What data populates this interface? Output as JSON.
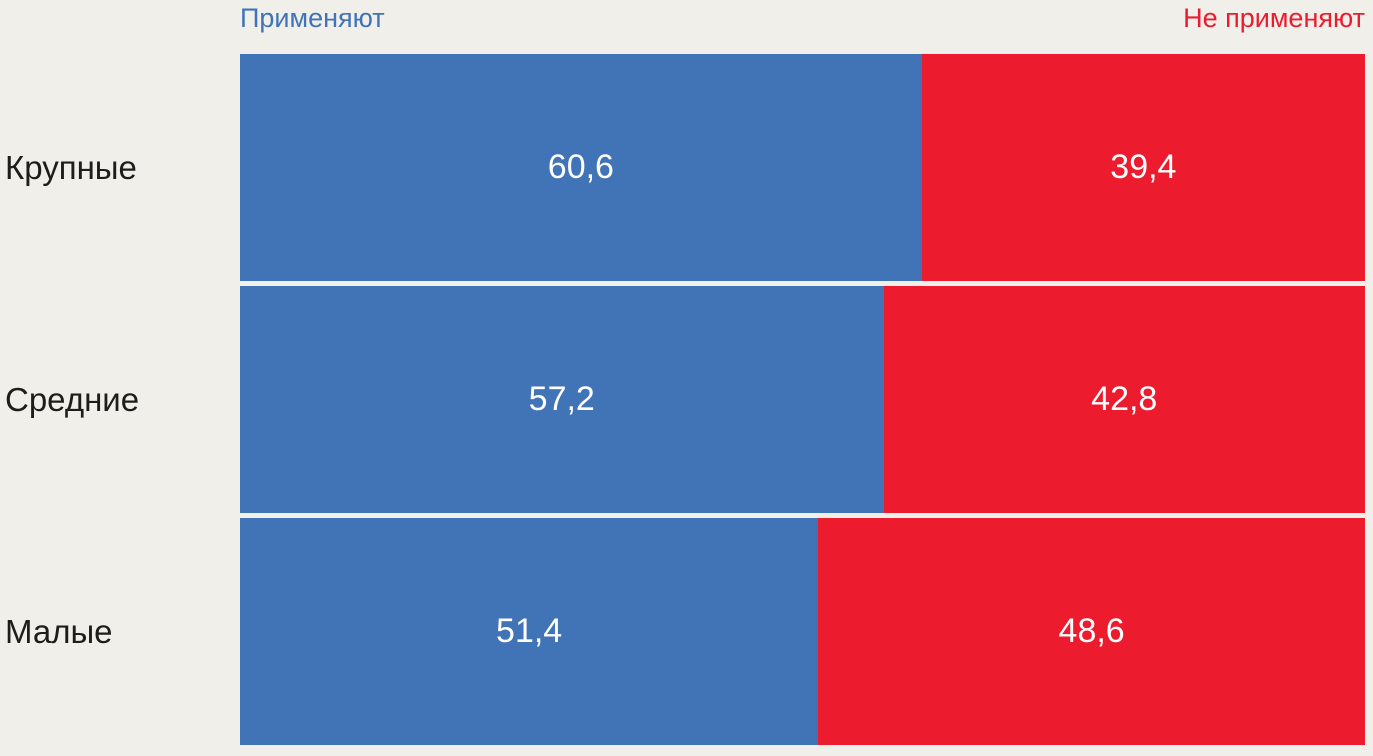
{
  "chart_data": {
    "type": "bar",
    "orientation": "horizontal",
    "stacked": true,
    "title": "",
    "xlabel": "",
    "ylabel": "",
    "xlim": [
      0,
      100
    ],
    "grid": false,
    "legend_position": "top",
    "background_color": "#F0EFE9",
    "category_label_color": "#1D1D1B",
    "value_label_color": "#FFFFFF",
    "value_decimal_separator": ",",
    "categories": [
      "Крупные",
      "Средние",
      "Малые"
    ],
    "series": [
      {
        "key": "apply",
        "name": "Применяют",
        "color": "#4173B7",
        "values": [
          60.6,
          57.2,
          51.4
        ],
        "labels": [
          "60,6",
          "57,2",
          "51,4"
        ]
      },
      {
        "key": "not-apply",
        "name": "Не применяют",
        "color": "#ED1B2E",
        "values": [
          39.4,
          42.8,
          48.6
        ],
        "labels": [
          "39,4",
          "42,8",
          "48,6"
        ]
      }
    ]
  },
  "legend": {
    "apply_label": "Применяют",
    "not_apply_label": "Не применяют"
  }
}
